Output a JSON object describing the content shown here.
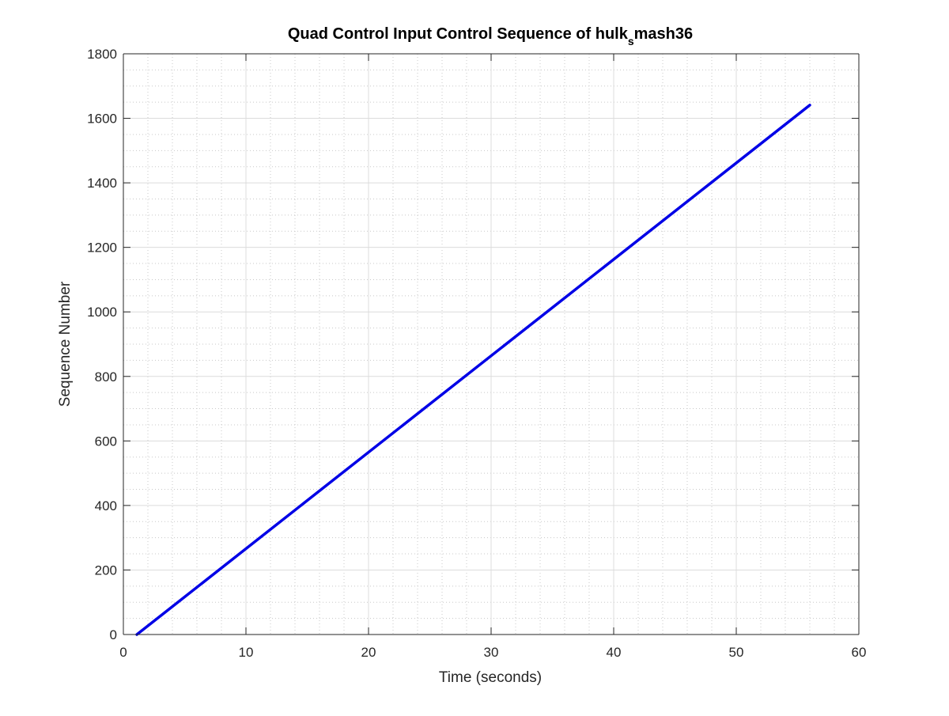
{
  "chart_data": {
    "type": "line",
    "title_main": "Quad Control Input Control Sequence of hulk",
    "title_subscript": "s",
    "title_rest": "mash36",
    "xlabel": "Time (seconds)",
    "ylabel": "Sequence Number",
    "xlim": [
      0,
      60
    ],
    "ylim": [
      0,
      1800
    ],
    "xticks": [
      "0",
      "10",
      "20",
      "30",
      "40",
      "50",
      "60"
    ],
    "yticks": [
      "0",
      "200",
      "400",
      "600",
      "800",
      "1000",
      "1200",
      "1400",
      "1600",
      "1800"
    ],
    "grid": true,
    "minor_grid": true,
    "series": [
      {
        "color": "#0000e6",
        "x": [
          1.1,
          56.0
        ],
        "y": [
          0,
          1641
        ]
      }
    ]
  }
}
